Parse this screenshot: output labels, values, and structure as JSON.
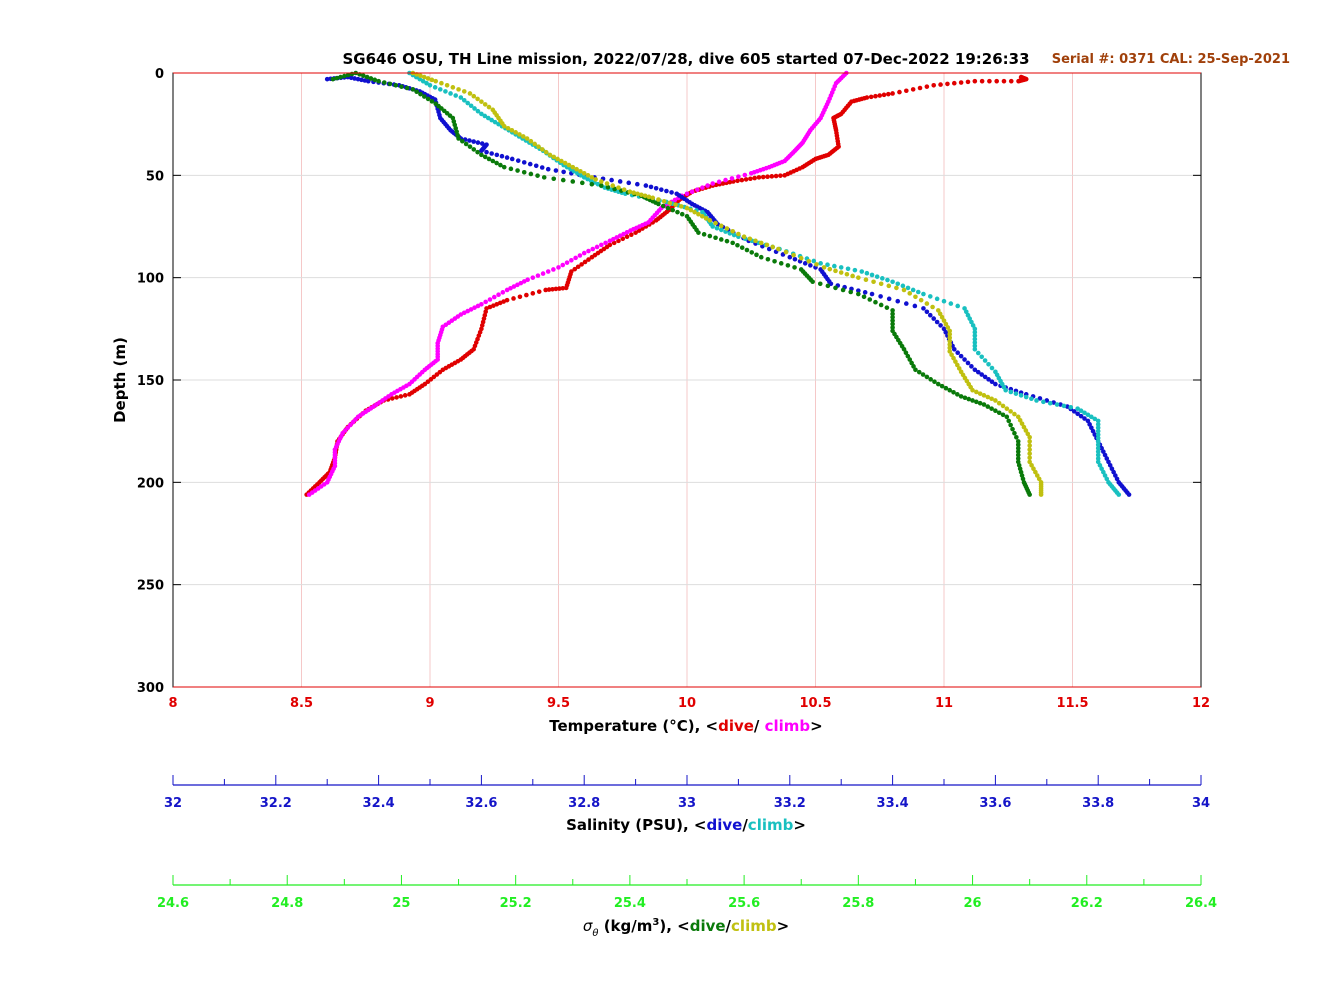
{
  "chart_data": {
    "type": "scatter",
    "title": "SG646 OSU, TH Line mission, 2022/07/28, dive 605 started 07-Dec-2022 19:26:33",
    "annotation": "Serial #: 0371  CAL: 25-Sep-2021",
    "ylabel": "Depth (m)",
    "ylim": [
      0,
      300
    ],
    "y_inverted": true,
    "yticks": [
      "0",
      "50",
      "100",
      "150",
      "200",
      "250",
      "300"
    ],
    "grid": true,
    "colors": {
      "temperature_axis": "#e00000",
      "temp_dive": "#e00000",
      "temp_climb": "#ff00ff",
      "salinity_axis": "#1515c8",
      "sal_dive": "#1010d0",
      "sal_climb": "#19c0c0",
      "density_axis": "#22ee22",
      "dens_dive": "#0a7a0a",
      "dens_climb": "#c0c010",
      "title": "#000000",
      "annotation": "#a0400a"
    },
    "axes": [
      {
        "id": "temperature",
        "label_prefix": "Temperature (°C), <",
        "label_dive": "dive",
        "label_sep": "/ ",
        "label_climb": "climb",
        "label_suffix": ">",
        "xlim": [
          8,
          12
        ],
        "ticks": [
          "8",
          "8.5",
          "9",
          "9.5",
          "10",
          "10.5",
          "11",
          "11.5",
          "12"
        ]
      },
      {
        "id": "salinity",
        "label_prefix": "Salinity (PSU), <",
        "label_dive": "dive",
        "label_sep": "/",
        "label_climb": "climb",
        "label_suffix": ">",
        "xlim": [
          32,
          34
        ],
        "ticks": [
          "32",
          "32.2",
          "32.4",
          "32.6",
          "32.8",
          "33",
          "33.2",
          "33.4",
          "33.6",
          "33.8",
          "34"
        ]
      },
      {
        "id": "density",
        "label_sigma": "σ",
        "label_theta": "θ",
        "label_units_a": " (kg/m",
        "label_units_exp": "3",
        "label_units_b": "), <",
        "label_dive": "dive",
        "label_sep": "/",
        "label_climb": "climb",
        "label_suffix": ">",
        "xlim": [
          24.6,
          26.4
        ],
        "ticks": [
          "24.6",
          "24.8",
          "25",
          "25.2",
          "25.4",
          "25.6",
          "25.8",
          "26",
          "26.2",
          "26.4"
        ]
      }
    ],
    "series": [
      {
        "name": "dive",
        "axis": "temperature",
        "points": [
          [
            11.3,
            2
          ],
          [
            11.32,
            3
          ],
          [
            11.29,
            4
          ],
          [
            11.12,
            4
          ],
          [
            10.96,
            6
          ],
          [
            10.8,
            10
          ],
          [
            10.7,
            12
          ],
          [
            10.64,
            14
          ],
          [
            10.6,
            20
          ],
          [
            10.57,
            22
          ],
          [
            10.58,
            28
          ],
          [
            10.59,
            36
          ],
          [
            10.55,
            40
          ],
          [
            10.5,
            42
          ],
          [
            10.45,
            46
          ],
          [
            10.38,
            50
          ],
          [
            10.28,
            51
          ],
          [
            10.18,
            53
          ],
          [
            10.1,
            55
          ],
          [
            10.02,
            58
          ],
          [
            9.97,
            62
          ],
          [
            9.93,
            67
          ],
          [
            9.88,
            72
          ],
          [
            9.8,
            78
          ],
          [
            9.7,
            84
          ],
          [
            9.63,
            90
          ],
          [
            9.55,
            97
          ],
          [
            9.53,
            105
          ],
          [
            9.45,
            106
          ],
          [
            9.3,
            111
          ],
          [
            9.22,
            115
          ],
          [
            9.2,
            125
          ],
          [
            9.17,
            135
          ],
          [
            9.12,
            140
          ],
          [
            9.05,
            145
          ],
          [
            8.98,
            152
          ],
          [
            8.92,
            157
          ],
          [
            8.82,
            160
          ],
          [
            8.75,
            165
          ],
          [
            8.68,
            173
          ],
          [
            8.64,
            180
          ],
          [
            8.63,
            188
          ],
          [
            8.61,
            195
          ],
          [
            8.57,
            200
          ],
          [
            8.52,
            206
          ]
        ]
      },
      {
        "name": "climb",
        "axis": "temperature",
        "points": [
          [
            10.62,
            0
          ],
          [
            10.58,
            5
          ],
          [
            10.55,
            14
          ],
          [
            10.52,
            22
          ],
          [
            10.48,
            28
          ],
          [
            10.45,
            34
          ],
          [
            10.42,
            38
          ],
          [
            10.38,
            43
          ],
          [
            10.32,
            46
          ],
          [
            10.25,
            49
          ],
          [
            10.1,
            54
          ],
          [
            9.98,
            60
          ],
          [
            9.9,
            66
          ],
          [
            9.85,
            73
          ],
          [
            9.78,
            77
          ],
          [
            9.7,
            82
          ],
          [
            9.6,
            88
          ],
          [
            9.5,
            95
          ],
          [
            9.38,
            101
          ],
          [
            9.3,
            106
          ],
          [
            9.2,
            113
          ],
          [
            9.12,
            118
          ],
          [
            9.05,
            124
          ],
          [
            9.03,
            132
          ],
          [
            9.03,
            140
          ],
          [
            8.98,
            145
          ],
          [
            8.92,
            152
          ],
          [
            8.85,
            157
          ],
          [
            8.78,
            163
          ],
          [
            8.72,
            168
          ],
          [
            8.66,
            176
          ],
          [
            8.63,
            184
          ],
          [
            8.63,
            192
          ],
          [
            8.6,
            200
          ],
          [
            8.53,
            206
          ]
        ]
      },
      {
        "name": "dive",
        "axis": "salinity",
        "points": [
          [
            32.3,
            3
          ],
          [
            32.34,
            2
          ],
          [
            32.38,
            4
          ],
          [
            32.44,
            6
          ],
          [
            32.48,
            9
          ],
          [
            32.51,
            13
          ],
          [
            32.52,
            22
          ],
          [
            32.54,
            28
          ],
          [
            32.56,
            32
          ],
          [
            32.61,
            35
          ],
          [
            32.6,
            38
          ],
          [
            32.66,
            42
          ],
          [
            32.73,
            47
          ],
          [
            32.82,
            51
          ],
          [
            32.92,
            55
          ],
          [
            32.98,
            59
          ],
          [
            33.01,
            64
          ],
          [
            33.04,
            68
          ],
          [
            33.06,
            74
          ],
          [
            33.12,
            82
          ],
          [
            33.2,
            90
          ],
          [
            33.26,
            96
          ],
          [
            33.28,
            103
          ],
          [
            33.36,
            108
          ],
          [
            33.46,
            115
          ],
          [
            33.5,
            125
          ],
          [
            33.52,
            135
          ],
          [
            33.56,
            145
          ],
          [
            33.6,
            152
          ],
          [
            33.66,
            157
          ],
          [
            33.74,
            163
          ],
          [
            33.78,
            170
          ],
          [
            33.8,
            180
          ],
          [
            33.82,
            190
          ],
          [
            33.84,
            200
          ],
          [
            33.86,
            206
          ]
        ]
      },
      {
        "name": "climb",
        "axis": "salinity",
        "points": [
          [
            32.46,
            0
          ],
          [
            32.5,
            6
          ],
          [
            32.56,
            12
          ],
          [
            32.6,
            20
          ],
          [
            32.64,
            26
          ],
          [
            32.68,
            32
          ],
          [
            32.72,
            38
          ],
          [
            32.76,
            45
          ],
          [
            32.8,
            51
          ],
          [
            32.84,
            56
          ],
          [
            32.88,
            59
          ],
          [
            32.96,
            63
          ],
          [
            33.03,
            68
          ],
          [
            33.05,
            75
          ],
          [
            33.1,
            80
          ],
          [
            33.18,
            86
          ],
          [
            33.26,
            93
          ],
          [
            33.34,
            97
          ],
          [
            33.4,
            102
          ],
          [
            33.46,
            108
          ],
          [
            33.54,
            115
          ],
          [
            33.56,
            125
          ],
          [
            33.56,
            135
          ],
          [
            33.6,
            146
          ],
          [
            33.62,
            155
          ],
          [
            33.68,
            160
          ],
          [
            33.76,
            164
          ],
          [
            33.8,
            170
          ],
          [
            33.8,
            180
          ],
          [
            33.8,
            190
          ],
          [
            33.82,
            200
          ],
          [
            33.84,
            206
          ]
        ]
      },
      {
        "name": "dive",
        "axis": "density",
        "points": [
          [
            24.88,
            3
          ],
          [
            24.92,
            0
          ],
          [
            24.96,
            4
          ],
          [
            25.02,
            8
          ],
          [
            25.06,
            15
          ],
          [
            25.09,
            22
          ],
          [
            25.1,
            32
          ],
          [
            25.14,
            40
          ],
          [
            25.18,
            46
          ],
          [
            25.25,
            51
          ],
          [
            25.35,
            55
          ],
          [
            25.42,
            60
          ],
          [
            25.45,
            64
          ],
          [
            25.5,
            70
          ],
          [
            25.52,
            78
          ],
          [
            25.58,
            83
          ],
          [
            25.63,
            90
          ],
          [
            25.7,
            96
          ],
          [
            25.72,
            102
          ],
          [
            25.8,
            108
          ],
          [
            25.86,
            116
          ],
          [
            25.86,
            126
          ],
          [
            25.88,
            135
          ],
          [
            25.9,
            145
          ],
          [
            25.94,
            152
          ],
          [
            25.98,
            158
          ],
          [
            26.02,
            162
          ],
          [
            26.06,
            168
          ],
          [
            26.08,
            180
          ],
          [
            26.08,
            190
          ],
          [
            26.09,
            200
          ],
          [
            26.1,
            206
          ]
        ]
      },
      {
        "name": "climb",
        "axis": "density",
        "points": [
          [
            25.02,
            0
          ],
          [
            25.06,
            4
          ],
          [
            25.12,
            10
          ],
          [
            25.16,
            18
          ],
          [
            25.18,
            26
          ],
          [
            25.22,
            32
          ],
          [
            25.26,
            40
          ],
          [
            25.3,
            46
          ],
          [
            25.34,
            52
          ],
          [
            25.4,
            58
          ],
          [
            25.44,
            61
          ],
          [
            25.5,
            66
          ],
          [
            25.54,
            72
          ],
          [
            25.6,
            80
          ],
          [
            25.66,
            86
          ],
          [
            25.74,
            95
          ],
          [
            25.8,
            100
          ],
          [
            25.88,
            106
          ],
          [
            25.94,
            116
          ],
          [
            25.96,
            126
          ],
          [
            25.96,
            136
          ],
          [
            25.98,
            146
          ],
          [
            26.0,
            155
          ],
          [
            26.04,
            160
          ],
          [
            26.08,
            168
          ],
          [
            26.1,
            178
          ],
          [
            26.1,
            190
          ],
          [
            26.12,
            200
          ],
          [
            26.12,
            206
          ]
        ]
      }
    ]
  }
}
